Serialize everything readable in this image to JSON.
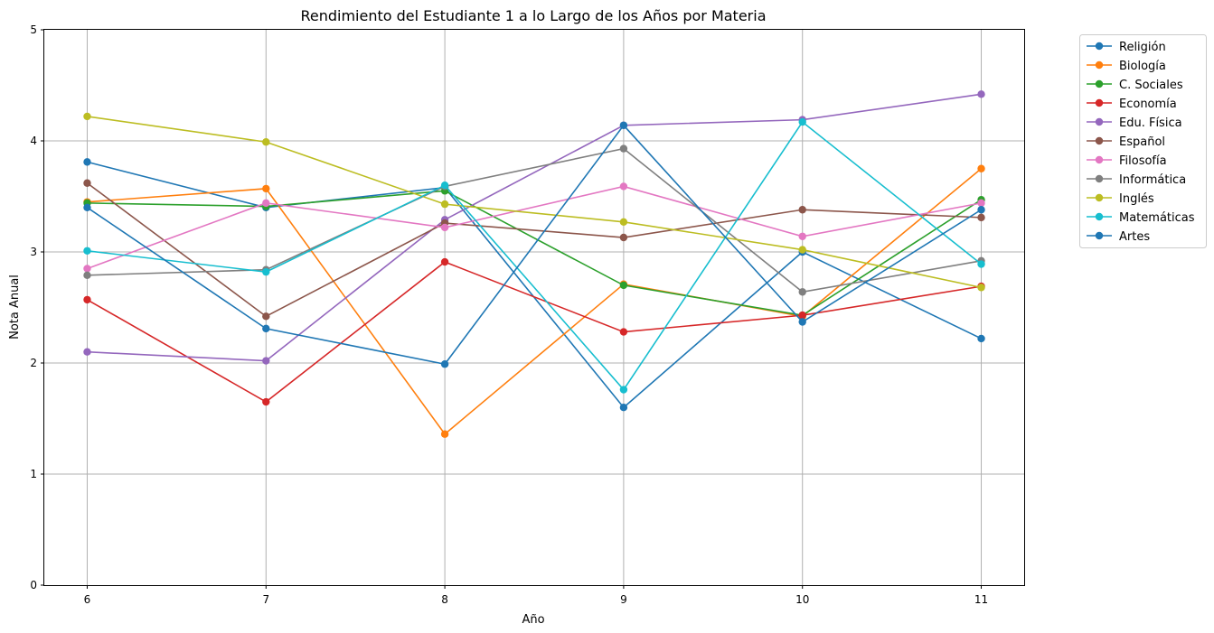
{
  "chart_data": {
    "type": "line",
    "title": "Rendimiento del Estudiante 1 a lo Largo de los Años por Materia",
    "xlabel": "Año",
    "ylabel": "Nota Anual",
    "x": [
      6,
      7,
      8,
      9,
      10,
      11
    ],
    "x_ticks": [
      "6",
      "7",
      "8",
      "9",
      "10",
      "11"
    ],
    "y_ticks": [
      "0",
      "1",
      "2",
      "3",
      "4",
      "5"
    ],
    "ylim": [
      0,
      5
    ],
    "xlim": [
      5.76,
      11.24
    ],
    "grid": true,
    "legend_position": "outside-top-right",
    "marker": "circle",
    "series": [
      {
        "name": "Religión",
        "color": "#1f77b4",
        "values": [
          3.81,
          3.4,
          3.58,
          1.6,
          3.0,
          2.22
        ]
      },
      {
        "name": "Biología",
        "color": "#ff7f0e",
        "values": [
          3.45,
          3.57,
          1.36,
          2.71,
          2.42,
          3.75
        ]
      },
      {
        "name": "C. Sociales",
        "color": "#2ca02c",
        "values": [
          3.44,
          3.41,
          3.55,
          2.7,
          2.43,
          3.47
        ]
      },
      {
        "name": "Economía",
        "color": "#d62728",
        "values": [
          2.57,
          1.65,
          2.91,
          2.28,
          2.43,
          2.69
        ]
      },
      {
        "name": "Edu. Física",
        "color": "#9467bd",
        "values": [
          2.1,
          2.02,
          3.29,
          4.14,
          4.19,
          4.42
        ]
      },
      {
        "name": "Español",
        "color": "#8c564b",
        "values": [
          3.62,
          2.42,
          3.26,
          3.13,
          3.38,
          3.31
        ]
      },
      {
        "name": "Filosofía",
        "color": "#e377c2",
        "values": [
          2.85,
          3.44,
          3.22,
          3.59,
          3.14,
          3.44
        ]
      },
      {
        "name": "Informática",
        "color": "#7f7f7f",
        "values": [
          2.79,
          2.84,
          3.59,
          3.93,
          2.64,
          2.92
        ]
      },
      {
        "name": "Inglés",
        "color": "#bcbd22",
        "values": [
          4.22,
          3.99,
          3.43,
          3.27,
          3.02,
          2.68
        ]
      },
      {
        "name": "Matemáticas",
        "color": "#17becf",
        "values": [
          3.01,
          2.82,
          3.6,
          1.76,
          4.17,
          2.89
        ]
      },
      {
        "name": "Artes",
        "color": "#1f77b4",
        "values": [
          3.4,
          2.31,
          1.99,
          4.14,
          2.37,
          3.38
        ]
      }
    ]
  }
}
